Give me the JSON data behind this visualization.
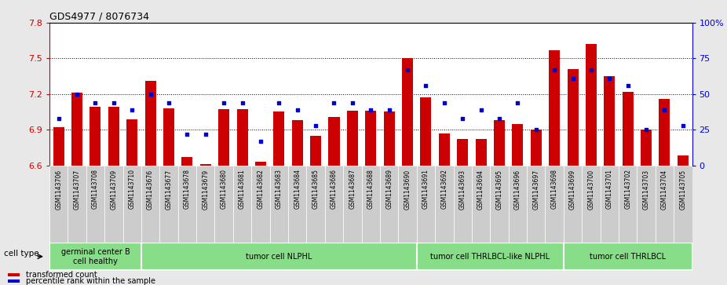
{
  "title": "GDS4977 / 8076734",
  "samples": [
    "GSM1143706",
    "GSM1143707",
    "GSM1143708",
    "GSM1143709",
    "GSM1143710",
    "GSM1143676",
    "GSM1143677",
    "GSM1143678",
    "GSM1143679",
    "GSM1143680",
    "GSM1143681",
    "GSM1143682",
    "GSM1143683",
    "GSM1143684",
    "GSM1143685",
    "GSM1143686",
    "GSM1143687",
    "GSM1143688",
    "GSM1143689",
    "GSM1143690",
    "GSM1143691",
    "GSM1143692",
    "GSM1143693",
    "GSM1143694",
    "GSM1143695",
    "GSM1143696",
    "GSM1143697",
    "GSM1143698",
    "GSM1143699",
    "GSM1143700",
    "GSM1143701",
    "GSM1143702",
    "GSM1143703",
    "GSM1143704",
    "GSM1143705"
  ],
  "bar_values": [
    6.92,
    7.21,
    7.09,
    7.09,
    6.99,
    7.31,
    7.08,
    6.67,
    6.61,
    7.07,
    7.07,
    6.63,
    7.05,
    6.98,
    6.85,
    7.01,
    7.06,
    7.06,
    7.05,
    7.5,
    7.17,
    6.87,
    6.82,
    6.82,
    6.98,
    6.95,
    6.9,
    7.57,
    7.41,
    7.62,
    7.35,
    7.22,
    6.9,
    7.16,
    6.68
  ],
  "percentile_values": [
    33,
    50,
    44,
    44,
    39,
    50,
    44,
    22,
    22,
    44,
    44,
    17,
    44,
    39,
    28,
    44,
    44,
    39,
    39,
    67,
    56,
    44,
    33,
    39,
    33,
    44,
    25,
    67,
    61,
    67,
    61,
    56,
    25,
    39,
    28
  ],
  "ylim": [
    6.6,
    7.8
  ],
  "yticks": [
    6.6,
    6.9,
    7.2,
    7.5,
    7.8
  ],
  "right_yticks": [
    0,
    25,
    50,
    75,
    100
  ],
  "bar_color": "#cc0000",
  "dot_color": "#0000cc",
  "grid_lines": [
    6.9,
    7.2,
    7.5
  ],
  "groups": [
    {
      "label": "germinal center B\ncell healthy",
      "start": 0,
      "end": 5
    },
    {
      "label": "tumor cell NLPHL",
      "start": 5,
      "end": 20
    },
    {
      "label": "tumor cell THRLBCL-like NLPHL",
      "start": 20,
      "end": 28
    },
    {
      "label": "tumor cell THRLBCL",
      "start": 28,
      "end": 35
    }
  ],
  "group_color": "#88dd88",
  "group_separator_color": "#ffffff",
  "legend_items": [
    {
      "label": "transformed count",
      "color": "#cc0000"
    },
    {
      "label": "percentile rank within the sample",
      "color": "#0000cc"
    }
  ],
  "cell_type_label": "cell type",
  "fig_bg": "#e8e8e8",
  "plot_bg": "#ffffff",
  "xtick_bg": "#cccccc"
}
